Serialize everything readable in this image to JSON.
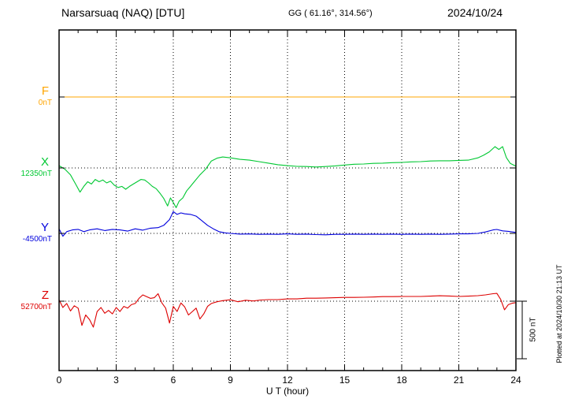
{
  "header": {
    "title": "Narsarsuaq (NAQ)  [DTU]",
    "gg": "GG ( 61.16°, 314.56°)",
    "date": "2024/10/24"
  },
  "axes": {
    "xlabel": "U T (hour)",
    "xtick_labels": [
      "0",
      "3",
      "6",
      "9",
      "12",
      "15",
      "18",
      "21",
      "24"
    ]
  },
  "scale_bar": {
    "label": "500 nT"
  },
  "side_note": "Plotted at 2024/10/30 21:13 UT",
  "chart_data": {
    "type": "line",
    "title": "Narsarsuaq (NAQ) [DTU] magnetogram",
    "date": "2024/10/24",
    "xlabel": "U T (hour)",
    "xlim": [
      0,
      24
    ],
    "xticks": [
      0,
      3,
      6,
      9,
      12,
      15,
      18,
      21,
      24
    ],
    "grid": "dotted",
    "scale_bar_nT": 500,
    "series": [
      {
        "name": "F",
        "color": "#FFA500",
        "baseline_nT": 0,
        "baseline_label": "0nT",
        "x": [
          0,
          24
        ],
        "offsets_nT": [
          0,
          0
        ]
      },
      {
        "name": "X",
        "color": "#00C832",
        "baseline_nT": 12350,
        "baseline_label": "12350nT",
        "x": [
          0,
          0.3,
          0.6,
          0.9,
          1.1,
          1.3,
          1.5,
          1.7,
          1.9,
          2.1,
          2.3,
          2.5,
          2.7,
          2.9,
          3.1,
          3.3,
          3.5,
          3.7,
          3.9,
          4.1,
          4.3,
          4.5,
          4.7,
          4.9,
          5.1,
          5.3,
          5.5,
          5.7,
          5.85,
          6.0,
          6.15,
          6.3,
          6.5,
          6.7,
          6.9,
          7.1,
          7.4,
          7.7,
          8.0,
          8.3,
          8.6,
          9.0,
          9.5,
          10,
          10.5,
          11,
          11.5,
          12,
          12.5,
          13,
          13.5,
          14,
          14.5,
          15,
          15.5,
          16,
          16.5,
          17,
          17.5,
          18,
          18.5,
          19,
          19.5,
          20,
          20.5,
          21,
          21.5,
          22,
          22.3,
          22.6,
          22.9,
          23.1,
          23.3,
          23.5,
          23.7,
          24
        ],
        "offsets_nT": [
          20,
          -10,
          -60,
          -150,
          -210,
          -160,
          -120,
          -140,
          -100,
          -120,
          -105,
          -130,
          -115,
          -150,
          -170,
          -160,
          -185,
          -160,
          -140,
          -120,
          -100,
          -105,
          -130,
          -160,
          -180,
          -220,
          -265,
          -330,
          -260,
          -300,
          -345,
          -290,
          -260,
          -200,
          -160,
          -120,
          -60,
          -10,
          60,
          85,
          95,
          88,
          75,
          68,
          55,
          42,
          28,
          20,
          14,
          12,
          8,
          12,
          18,
          25,
          32,
          34,
          40,
          42,
          46,
          48,
          53,
          55,
          60,
          62,
          62,
          66,
          68,
          88,
          110,
          140,
          185,
          160,
          185,
          90,
          40,
          15
        ]
      },
      {
        "name": "Y",
        "color": "#0000DD",
        "baseline_nT": -4500,
        "baseline_label": "-4500nT",
        "x": [
          0,
          0.2,
          0.4,
          0.7,
          1,
          1.3,
          1.6,
          2,
          2.4,
          2.8,
          3.2,
          3.6,
          4,
          4.4,
          4.8,
          5.2,
          5.5,
          5.8,
          6.0,
          6.2,
          6.4,
          6.6,
          6.9,
          7.2,
          7.5,
          7.8,
          8.1,
          8.4,
          8.7,
          9,
          9.5,
          10,
          10.5,
          11,
          11.5,
          12,
          12.5,
          13,
          13.5,
          14,
          14.5,
          15,
          15.5,
          16,
          16.5,
          17,
          17.5,
          18,
          18.5,
          19,
          19.5,
          20,
          20.5,
          21,
          21.5,
          22,
          22.4,
          22.8,
          23,
          23.3,
          23.6,
          24
        ],
        "offsets_nT": [
          40,
          -25,
          15,
          30,
          35,
          15,
          30,
          40,
          25,
          35,
          30,
          20,
          40,
          28,
          45,
          50,
          70,
          120,
          190,
          165,
          178,
          170,
          165,
          150,
          110,
          70,
          40,
          15,
          5,
          0,
          -6,
          -5,
          -8,
          -6,
          -8,
          -4,
          -8,
          -6,
          -10,
          -12,
          -8,
          -8,
          -6,
          -8,
          -6,
          -8,
          -6,
          -8,
          -6,
          -8,
          -6,
          -8,
          -6,
          -4,
          -4,
          0,
          12,
          30,
          34,
          22,
          18,
          8
        ]
      },
      {
        "name": "Z",
        "color": "#DD0000",
        "baseline_nT": 52700,
        "baseline_label": "52700nT",
        "x": [
          0,
          0.2,
          0.4,
          0.6,
          0.8,
          1.0,
          1.2,
          1.4,
          1.6,
          1.8,
          2.0,
          2.2,
          2.4,
          2.6,
          2.8,
          3.0,
          3.2,
          3.4,
          3.6,
          3.8,
          4.0,
          4.2,
          4.4,
          4.6,
          4.8,
          5.0,
          5.2,
          5.4,
          5.6,
          5.8,
          6.0,
          6.2,
          6.4,
          6.6,
          6.8,
          7.0,
          7.2,
          7.4,
          7.6,
          7.8,
          8.0,
          8.3,
          8.6,
          9.0,
          9.4,
          9.8,
          10.2,
          10.6,
          11,
          11.5,
          12,
          12.5,
          13,
          13.5,
          14,
          14.5,
          15,
          15.5,
          16,
          16.5,
          17,
          17.5,
          18,
          18.5,
          19,
          19.5,
          20,
          20.5,
          21,
          21.5,
          22,
          22.4,
          22.8,
          23,
          23.2,
          23.4,
          23.6,
          23.8,
          24
        ],
        "offsets_nT": [
          12,
          -55,
          -20,
          -85,
          -40,
          -60,
          -210,
          -120,
          -160,
          -225,
          -90,
          -55,
          -105,
          -80,
          -110,
          -55,
          -90,
          -45,
          -60,
          -30,
          -20,
          25,
          55,
          40,
          25,
          30,
          65,
          -15,
          -60,
          -190,
          -45,
          -90,
          -15,
          -50,
          -120,
          -90,
          -60,
          -155,
          -110,
          -45,
          -20,
          -5,
          5,
          12,
          -5,
          8,
          2,
          10,
          14,
          14,
          20,
          20,
          26,
          26,
          28,
          30,
          33,
          33,
          34,
          36,
          40,
          40,
          41,
          41,
          41,
          44,
          47,
          45,
          41,
          44,
          48,
          55,
          65,
          68,
          15,
          -75,
          -30,
          -18,
          -12
        ]
      }
    ]
  }
}
